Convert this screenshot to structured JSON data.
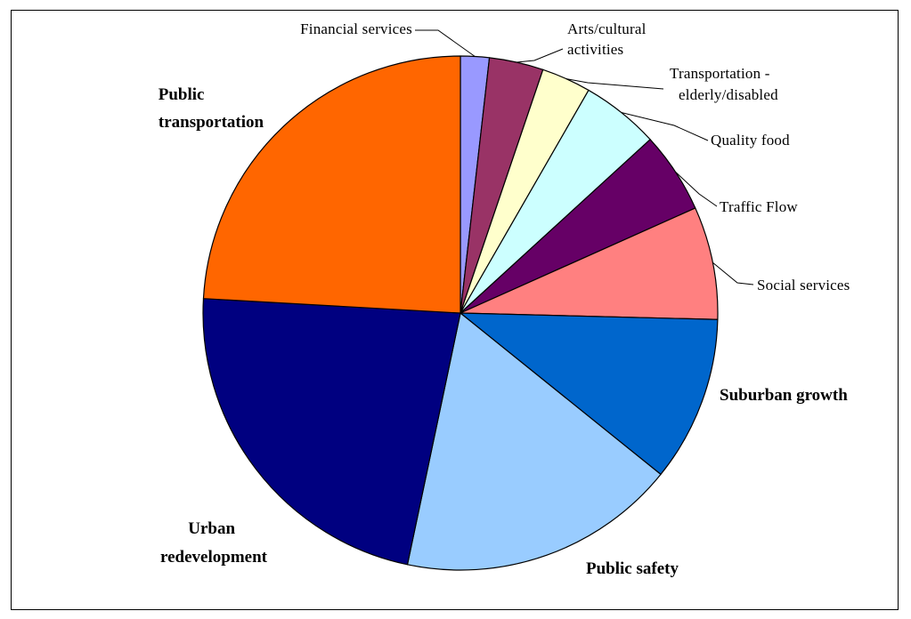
{
  "chart_data": {
    "type": "pie",
    "title": "",
    "legend": "none",
    "slices": [
      {
        "label": "Financial services",
        "value": 1.8,
        "color": "#9999ff"
      },
      {
        "label": "Arts/cultural activities",
        "value": 3.4,
        "color": "#993366"
      },
      {
        "label": "Transportation - elderly/disabled",
        "value": 3.1,
        "color": "#ffffcc"
      },
      {
        "label": "Quality food",
        "value": 4.9,
        "color": "#ccffff"
      },
      {
        "label": "Traffic Flow",
        "value": 5.1,
        "color": "#660066"
      },
      {
        "label": "Social services",
        "value": 7.1,
        "color": "#ff8080"
      },
      {
        "label": "Suburban growth",
        "value": 10.4,
        "color": "#0066cc"
      },
      {
        "label": "Public safety",
        "value": 17.5,
        "color": "#99ccff"
      },
      {
        "label": "Urban redevelopment",
        "value": 22.6,
        "color": "#000080"
      },
      {
        "label": "Public transportation",
        "value": 24.1,
        "color": "#ff6600"
      }
    ]
  }
}
